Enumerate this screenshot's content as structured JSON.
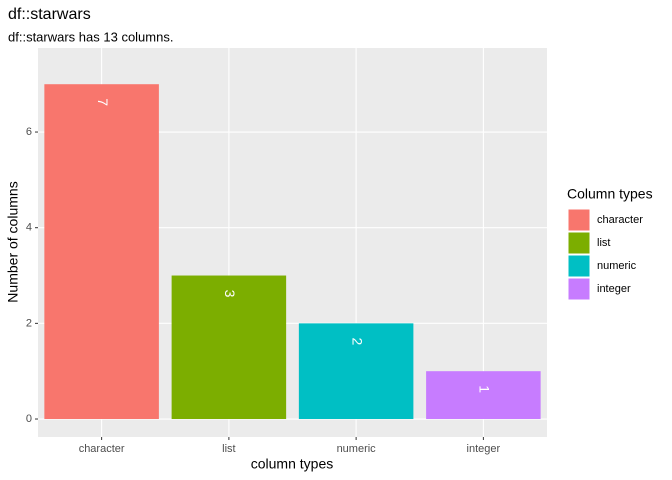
{
  "chart_data": {
    "type": "bar",
    "title": "df::starwars",
    "subtitle": "df::starwars has 13 columns.",
    "x_label": "column types",
    "y_label": "Number of columns",
    "legend_title": "Column types",
    "legend_position": "right",
    "categories": [
      "character",
      "list",
      "numeric",
      "integer"
    ],
    "values": [
      7,
      3,
      2,
      1
    ],
    "colors": [
      "#F8766D",
      "#7CAE00",
      "#00BFC4",
      "#C77CFF"
    ],
    "ylim": [
      -0.376,
      7.757
    ],
    "yticks": [
      0,
      2,
      4,
      6
    ],
    "grid": true
  }
}
